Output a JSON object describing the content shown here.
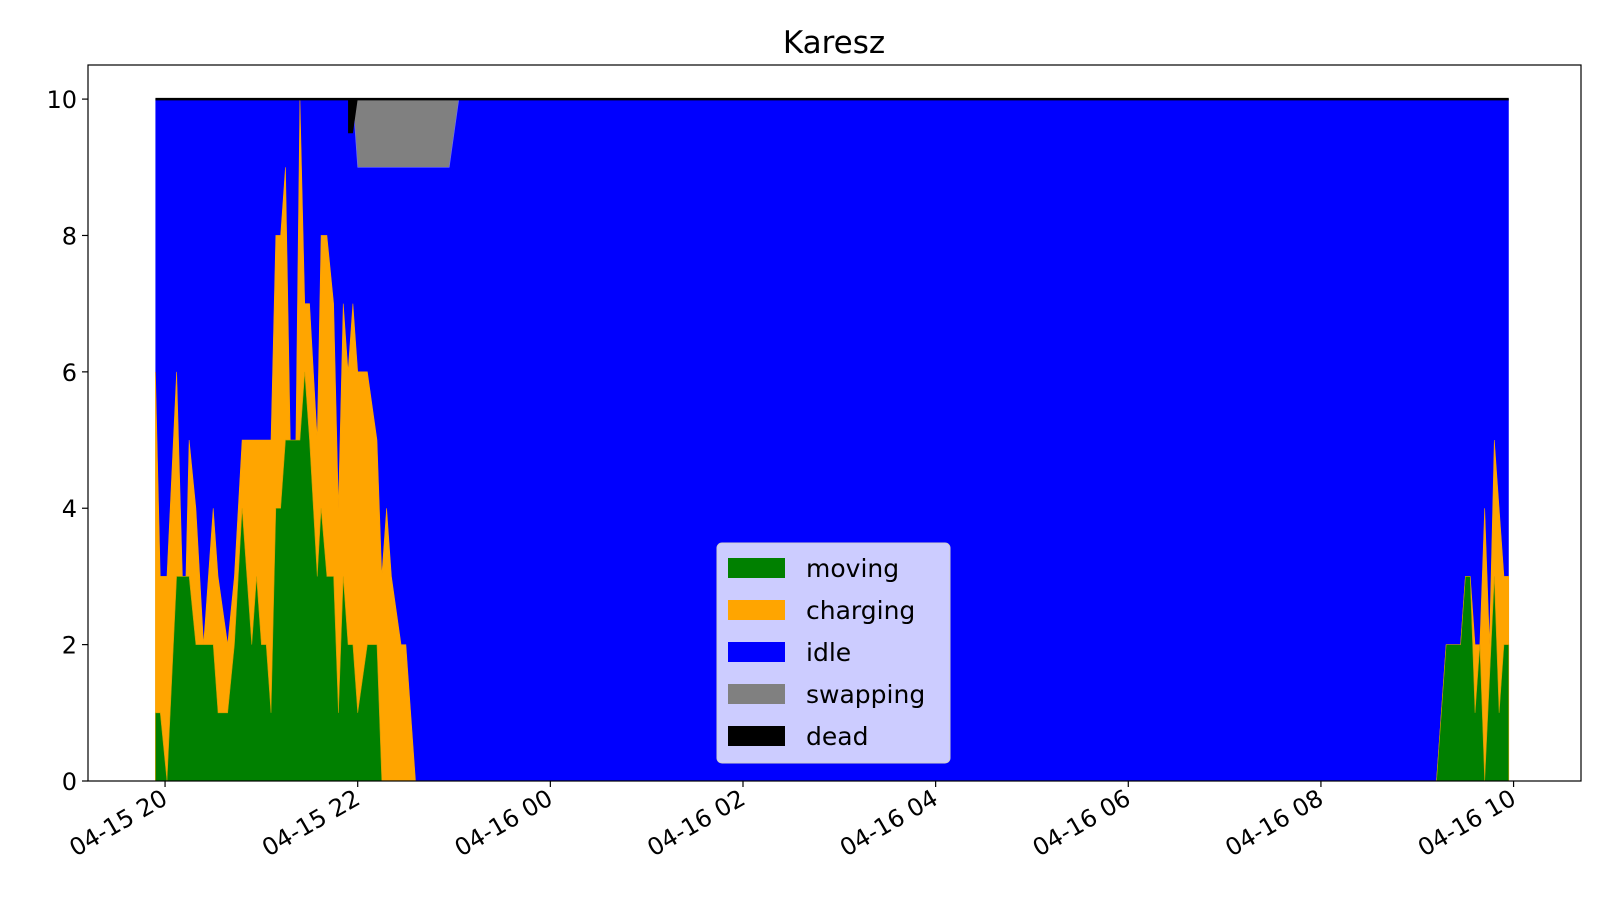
{
  "chart_data": {
    "type": "area",
    "stacked": true,
    "title": "Karesz",
    "xlabel": "",
    "ylabel": "",
    "x_unit": "hours",
    "x_range_hours": [
      19.8,
      9.9
    ],
    "xlim_hours": [
      -0.8,
      14.7
    ],
    "ylim": [
      0,
      10.5
    ],
    "yticks": [
      0,
      2,
      4,
      6,
      8,
      10
    ],
    "xticks": [
      {
        "h": 0,
        "label": "04-15 20"
      },
      {
        "h": 2,
        "label": "04-15 22"
      },
      {
        "h": 4,
        "label": "04-16 00"
      },
      {
        "h": 6,
        "label": "04-16 02"
      },
      {
        "h": 8,
        "label": "04-16 04"
      },
      {
        "h": 10,
        "label": "04-16 06"
      },
      {
        "h": 12,
        "label": "04-16 08"
      },
      {
        "h": 14,
        "label": "04-16 10"
      }
    ],
    "legend_position": "lower-center",
    "grid": false,
    "total": 10,
    "series": [
      {
        "name": "moving",
        "color": "#008000",
        "points": [
          [
            -0.1,
            1
          ],
          [
            -0.05,
            1
          ],
          [
            0.02,
            0
          ],
          [
            0.12,
            3
          ],
          [
            0.25,
            3
          ],
          [
            0.32,
            2
          ],
          [
            0.5,
            2
          ],
          [
            0.55,
            1
          ],
          [
            0.65,
            1
          ],
          [
            0.72,
            2
          ],
          [
            0.8,
            4
          ],
          [
            0.85,
            3
          ],
          [
            0.9,
            2
          ],
          [
            0.95,
            3
          ],
          [
            1.0,
            2
          ],
          [
            1.05,
            2
          ],
          [
            1.1,
            1
          ],
          [
            1.15,
            4
          ],
          [
            1.2,
            4
          ],
          [
            1.25,
            5
          ],
          [
            1.4,
            5
          ],
          [
            1.45,
            6
          ],
          [
            1.5,
            5
          ],
          [
            1.58,
            3
          ],
          [
            1.62,
            4
          ],
          [
            1.68,
            3
          ],
          [
            1.75,
            3
          ],
          [
            1.8,
            1
          ],
          [
            1.85,
            3
          ],
          [
            1.9,
            2
          ],
          [
            1.95,
            2
          ],
          [
            2.0,
            1
          ],
          [
            2.1,
            2
          ],
          [
            2.2,
            2
          ],
          [
            2.25,
            0
          ],
          [
            13.2,
            0
          ],
          [
            13.3,
            2
          ],
          [
            13.45,
            2
          ],
          [
            13.5,
            3
          ],
          [
            13.55,
            3
          ],
          [
            13.6,
            1
          ],
          [
            13.65,
            2
          ],
          [
            13.7,
            0
          ],
          [
            13.8,
            3
          ],
          [
            13.85,
            1
          ],
          [
            13.9,
            2
          ],
          [
            13.95,
            2
          ]
        ]
      },
      {
        "name": "charging",
        "color": "#ffa500",
        "points": [
          [
            -0.1,
            5
          ],
          [
            -0.05,
            2
          ],
          [
            0.02,
            3
          ],
          [
            0.12,
            3
          ],
          [
            0.2,
            2
          ],
          [
            0.25,
            2
          ],
          [
            0.32,
            2
          ],
          [
            0.4,
            2
          ],
          [
            0.5,
            2
          ],
          [
            0.55,
            2
          ],
          [
            0.65,
            1
          ],
          [
            0.72,
            1
          ],
          [
            0.8,
            1
          ],
          [
            0.85,
            2
          ],
          [
            0.9,
            3
          ],
          [
            0.95,
            2
          ],
          [
            1.0,
            3
          ],
          [
            1.05,
            3
          ],
          [
            1.1,
            4
          ],
          [
            1.15,
            4
          ],
          [
            1.2,
            4
          ],
          [
            1.25,
            4
          ],
          [
            1.3,
            5
          ],
          [
            1.35,
            4
          ],
          [
            1.4,
            5
          ],
          [
            1.45,
            1
          ],
          [
            1.5,
            2
          ],
          [
            1.58,
            2
          ],
          [
            1.62,
            4
          ],
          [
            1.68,
            5
          ],
          [
            1.75,
            4
          ],
          [
            1.8,
            3
          ],
          [
            1.85,
            4
          ],
          [
            1.9,
            4
          ],
          [
            1.95,
            5
          ],
          [
            2.0,
            5
          ],
          [
            2.1,
            4
          ],
          [
            2.2,
            3
          ],
          [
            2.25,
            3
          ],
          [
            2.3,
            4
          ],
          [
            2.35,
            3
          ],
          [
            2.45,
            2
          ],
          [
            2.5,
            2
          ],
          [
            2.6,
            0
          ],
          [
            13.2,
            0
          ],
          [
            13.3,
            0
          ],
          [
            13.45,
            0
          ],
          [
            13.5,
            0
          ],
          [
            13.55,
            0
          ],
          [
            13.6,
            1
          ],
          [
            13.65,
            0
          ],
          [
            13.7,
            4
          ],
          [
            13.75,
            2
          ],
          [
            13.8,
            2
          ],
          [
            13.85,
            3
          ],
          [
            13.9,
            1
          ],
          [
            13.95,
            1
          ]
        ]
      },
      {
        "name": "idle",
        "color": "#0000ff"
      },
      {
        "name": "swapping",
        "color": "#808080",
        "points": [
          [
            1.95,
            0
          ],
          [
            2.0,
            1
          ],
          [
            2.95,
            1
          ],
          [
            3.05,
            0
          ]
        ]
      },
      {
        "name": "dead",
        "color": "#000000",
        "points": [
          [
            1.9,
            0.5
          ],
          [
            1.95,
            0.5
          ],
          [
            2.0,
            0
          ]
        ]
      }
    ]
  }
}
